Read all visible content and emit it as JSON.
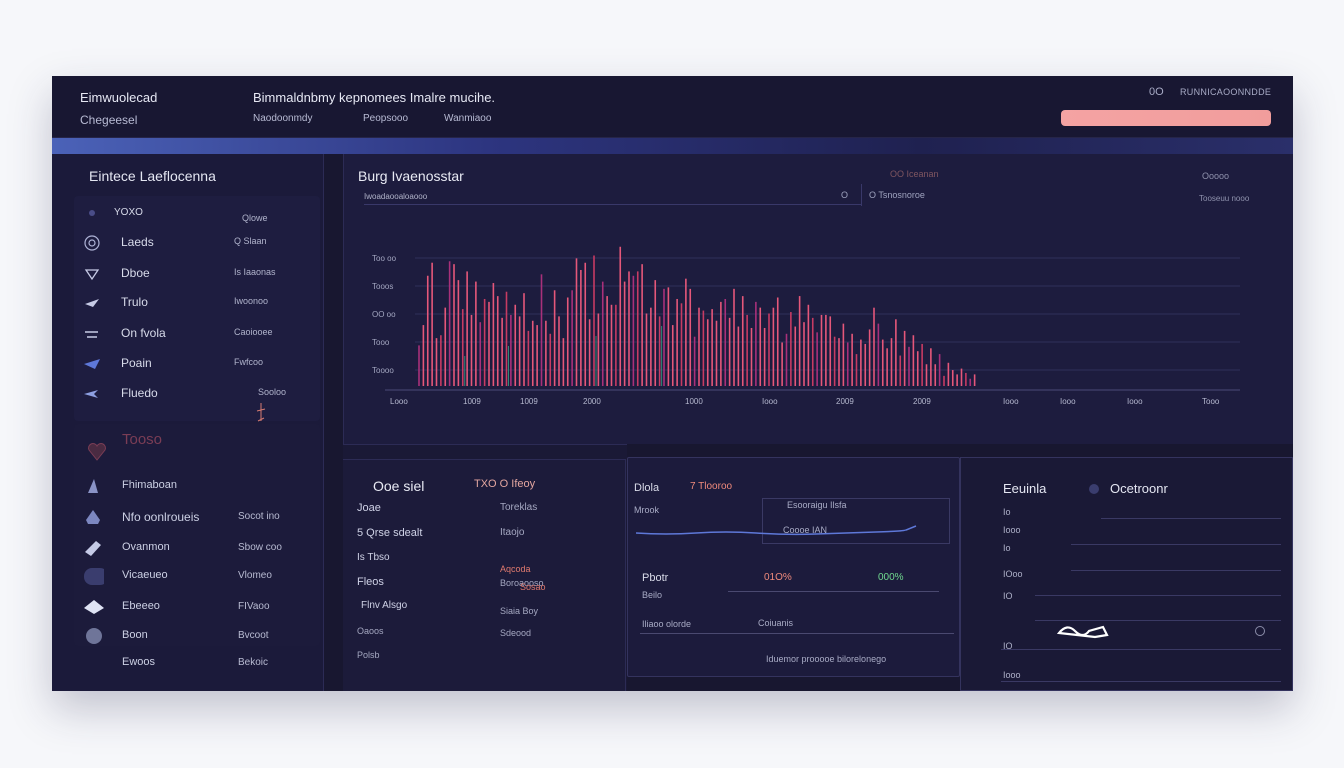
{
  "topbar": {
    "brand": "Eimwuolecad",
    "sub": "Chegeesel",
    "title": "Bimmaldnbmy kepnomees Imalre mucihe.",
    "links": [
      "Naodoonmdy",
      "Peopsooo",
      "Wanmiaoo"
    ],
    "right_a": "0O",
    "right_b": "RUNNICAOONNDDE"
  },
  "sidebar": {
    "title": "Eintece Laeflocenna",
    "group": [
      {
        "label": "YOXO",
        "value": "Qlowe",
        "icon": "star-icon"
      },
      {
        "label": "Laeds",
        "value": "Q Slaan",
        "icon": "target-icon"
      },
      {
        "label": "Dboe",
        "value": "Is Iaaonas",
        "icon": "chevron-icon"
      },
      {
        "label": "Trulo",
        "value": "Iwoonoo",
        "icon": "arrow-icon"
      },
      {
        "label": "On fvola",
        "value": "Caoiooee",
        "icon": "swap-icon"
      },
      {
        "label": "Poain",
        "value": "Fwfcoo",
        "icon": "plane-icon"
      },
      {
        "label": "Fluedo",
        "value": "Sooloo",
        "icon": "arrow-left-icon"
      }
    ],
    "section_label": "Tooso",
    "list": [
      {
        "label": "Fhimaboan",
        "value": "",
        "icon": "arrow-icon"
      },
      {
        "label": "Nfo oonlroueis",
        "value": "Socot ino",
        "icon": "box-icon"
      },
      {
        "label": "Ovanmon",
        "value": "Sbow coo",
        "icon": "tag-icon"
      },
      {
        "label": "Vicaeueo",
        "value": "Vlomeo",
        "icon": "circle-icon"
      },
      {
        "label": "Ebeeeo",
        "value": "FIVaoo",
        "icon": "diamond-icon"
      },
      {
        "label": "Boon",
        "value": "Bvcoot",
        "icon": "avatar-icon"
      },
      {
        "label": "Ewoos",
        "value": "Bekoic",
        "icon": ""
      }
    ]
  },
  "chart_panel": {
    "title": "Burg Ivaenosstar",
    "subtitle": "Iwoadaooaloaooo",
    "mid_a": "O",
    "mid_b": "O Tsnosnoroe",
    "legend_a": "OO Iceanan",
    "legend_b": "Ooooo",
    "legend_c": "Tooseuu nooo"
  },
  "chart_data": {
    "type": "bar",
    "title": "Burg Ivaenosstar",
    "ylabels": [
      "Too oo",
      "Tooos",
      "OO oo",
      "Tooo",
      "Toooo"
    ],
    "xlabels": [
      "Looo",
      "1009",
      "1009",
      "2000",
      "1000",
      "Iooo",
      "2009",
      "2009",
      "Iooo",
      "Iooo",
      "Iooo",
      "Tooo"
    ],
    "series": [
      {
        "name": "primary",
        "values": [
          28,
          42,
          76,
          85,
          33,
          35,
          54,
          86,
          84,
          73,
          53,
          79,
          49,
          72,
          44,
          60,
          58,
          71,
          62,
          47,
          65,
          49,
          56,
          48,
          64,
          38,
          45,
          42,
          77,
          45,
          36,
          66,
          48,
          33,
          61,
          66,
          88,
          80,
          85,
          46,
          90,
          50,
          72,
          62,
          56,
          56,
          96,
          72,
          79,
          76,
          79,
          84,
          50,
          54,
          73,
          48,
          67,
          68,
          42,
          60,
          57,
          74,
          67,
          34,
          54,
          52,
          46,
          53,
          45,
          58,
          60,
          47,
          67,
          41,
          62,
          49,
          40,
          58,
          54,
          40,
          50,
          54,
          61,
          30,
          36,
          51,
          41,
          62,
          44,
          56,
          47,
          37,
          49,
          49,
          48,
          34,
          33,
          43,
          30,
          36,
          22,
          32,
          29,
          39,
          54,
          43,
          32,
          26,
          33,
          46,
          21,
          38,
          27,
          35,
          24,
          29,
          15,
          26,
          15,
          22,
          7,
          16,
          11,
          8,
          12,
          9,
          5,
          8
        ]
      }
    ],
    "ylim": [
      0,
      100
    ]
  },
  "bottom_left": {
    "title": "Ooe siel",
    "col1": [
      "Joae",
      "5 Qrse sdealt",
      "Is Tbso",
      "Fleos",
      "Flnv Alsgo",
      "Oaoos",
      "Polsb"
    ],
    "col2_title": "TXO O Ifeoy",
    "col2": [
      "Toreklas",
      "Itaojo",
      "Aqcoda",
      "Boroaooso",
      "Sosao",
      "Siaia Boy",
      "Sdeood"
    ]
  },
  "bottom_mid": {
    "a": "Dlola",
    "b": "7 Tlooroo",
    "c": "Mrook",
    "d": "Esooraigu Ilsfa",
    "e": "Coooe IAN",
    "f": "Pbotr",
    "g": "Beilo",
    "h": "01O%",
    "i": "000%",
    "j": "Iliaoo olorde",
    "k": "Coiuanis",
    "l": "Iduemor prooooe bilorelonego"
  },
  "bottom_right": {
    "title_a": "Eeuinla",
    "title_b": "Ocetroonr",
    "rows": [
      "Io",
      "Iooo",
      "Io",
      "IOoo",
      "IO",
      "IO",
      "Iooo"
    ]
  }
}
